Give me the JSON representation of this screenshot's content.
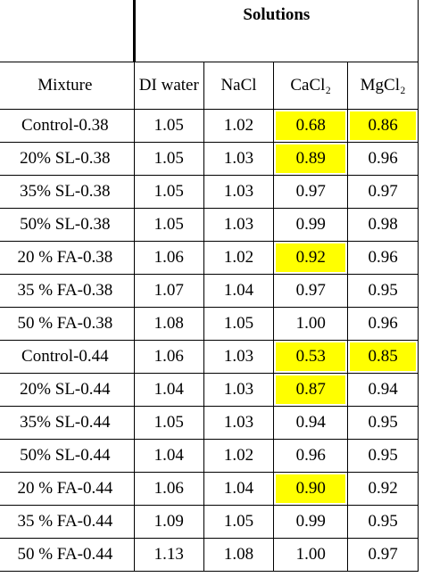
{
  "table": {
    "group_header": "Solutions",
    "columns": [
      "Mixture",
      "DI water",
      "NaCl",
      "CaCl₂",
      "MgCl₂"
    ],
    "highlight_color": "#ffff00",
    "rows": [
      {
        "mixture": "Control-0.38",
        "di": "1.05",
        "nacl": "1.02",
        "cacl": "0.68",
        "mgcl": "0.86",
        "hl_cacl": true,
        "hl_mgcl": true
      },
      {
        "mixture": "20% SL-0.38",
        "di": "1.05",
        "nacl": "1.03",
        "cacl": "0.89",
        "mgcl": "0.96",
        "hl_cacl": true,
        "hl_mgcl": false
      },
      {
        "mixture": "35% SL-0.38",
        "di": "1.05",
        "nacl": "1.03",
        "cacl": "0.97",
        "mgcl": "0.97",
        "hl_cacl": false,
        "hl_mgcl": false
      },
      {
        "mixture": "50% SL-0.38",
        "di": "1.05",
        "nacl": "1.03",
        "cacl": "0.99",
        "mgcl": "0.98",
        "hl_cacl": false,
        "hl_mgcl": false
      },
      {
        "mixture": "20 % FA-0.38",
        "di": "1.06",
        "nacl": "1.02",
        "cacl": "0.92",
        "mgcl": "0.96",
        "hl_cacl": true,
        "hl_mgcl": false
      },
      {
        "mixture": "35 % FA-0.38",
        "di": "1.07",
        "nacl": "1.04",
        "cacl": "0.97",
        "mgcl": "0.95",
        "hl_cacl": false,
        "hl_mgcl": false
      },
      {
        "mixture": "50 % FA-0.38",
        "di": "1.08",
        "nacl": "1.05",
        "cacl": "1.00",
        "mgcl": "0.96",
        "hl_cacl": false,
        "hl_mgcl": false
      },
      {
        "mixture": "Control-0.44",
        "di": "1.06",
        "nacl": "1.03",
        "cacl": "0.53",
        "mgcl": "0.85",
        "hl_cacl": true,
        "hl_mgcl": true
      },
      {
        "mixture": "20% SL-0.44",
        "di": "1.04",
        "nacl": "1.03",
        "cacl": "0.87",
        "mgcl": "0.94",
        "hl_cacl": true,
        "hl_mgcl": false
      },
      {
        "mixture": "35% SL-0.44",
        "di": "1.05",
        "nacl": "1.03",
        "cacl": "0.94",
        "mgcl": "0.95",
        "hl_cacl": false,
        "hl_mgcl": false
      },
      {
        "mixture": "50% SL-0.44",
        "di": "1.04",
        "nacl": "1.02",
        "cacl": "0.96",
        "mgcl": "0.95",
        "hl_cacl": false,
        "hl_mgcl": false
      },
      {
        "mixture": "20 % FA-0.44",
        "di": "1.06",
        "nacl": "1.04",
        "cacl": "0.90",
        "mgcl": "0.92",
        "hl_cacl": true,
        "hl_mgcl": false
      },
      {
        "mixture": "35 % FA-0.44",
        "di": "1.09",
        "nacl": "1.05",
        "cacl": "0.99",
        "mgcl": "0.95",
        "hl_cacl": false,
        "hl_mgcl": false
      },
      {
        "mixture": "50 % FA-0.44",
        "di": "1.13",
        "nacl": "1.08",
        "cacl": "1.00",
        "mgcl": "0.97",
        "hl_cacl": false,
        "hl_mgcl": false
      }
    ]
  }
}
